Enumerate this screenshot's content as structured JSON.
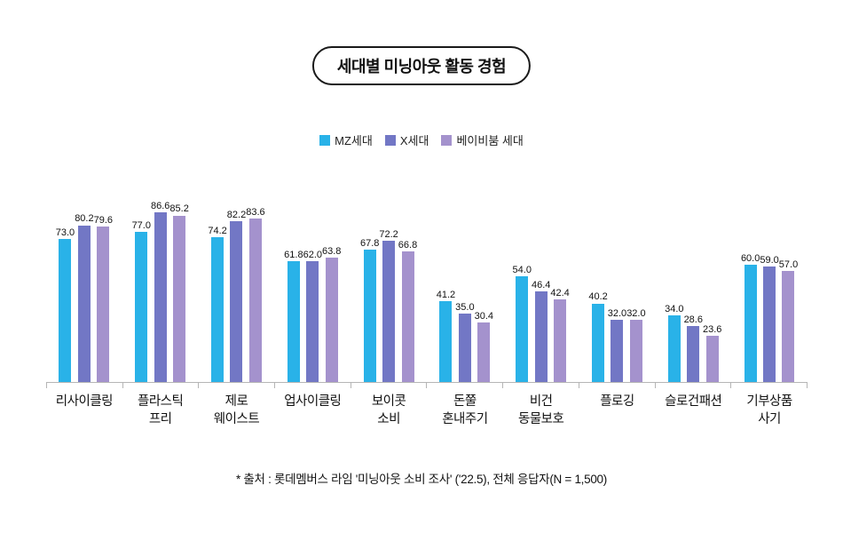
{
  "title": "세대별 미닝아웃 활동 경험",
  "legend": [
    {
      "label": "MZ세대",
      "color": "#29b2e8"
    },
    {
      "label": "X세대",
      "color": "#7277c5"
    },
    {
      "label": "베이비붐 세대",
      "color": "#a492cd"
    }
  ],
  "chart_data": {
    "type": "bar",
    "title": "세대별 미닝아웃 활동 경험",
    "categories": [
      "리사이클링",
      "플라스틱\n프리",
      "제로\n웨이스트",
      "업사이클링",
      "보이콧\n소비",
      "돈쭐\n혼내주기",
      "비건\n동물보호",
      "플로깅",
      "슬로건패션",
      "기부상품\n사기"
    ],
    "series": [
      {
        "name": "MZ세대",
        "color": "#29b2e8",
        "values": [
          73.0,
          77.0,
          74.2,
          61.8,
          67.8,
          41.2,
          54.0,
          40.2,
          34.0,
          60.0
        ]
      },
      {
        "name": "X세대",
        "color": "#7277c5",
        "values": [
          80.2,
          86.6,
          82.2,
          62.0,
          72.2,
          35.0,
          46.4,
          32.0,
          28.6,
          59.0
        ]
      },
      {
        "name": "베이비붐 세대",
        "color": "#a492cd",
        "values": [
          79.6,
          85.2,
          83.6,
          63.8,
          66.8,
          30.4,
          42.4,
          32.0,
          23.6,
          57.0
        ]
      }
    ],
    "ylim": [
      0,
      100
    ],
    "value_labels": true,
    "grid": false,
    "legend_position": "top",
    "xlabel": "",
    "ylabel": ""
  },
  "footnote": "* 출처 : 롯데멤버스 라임 '미닝아웃 소비 조사' ('22.5), 전체 응답자(N = 1,500)"
}
